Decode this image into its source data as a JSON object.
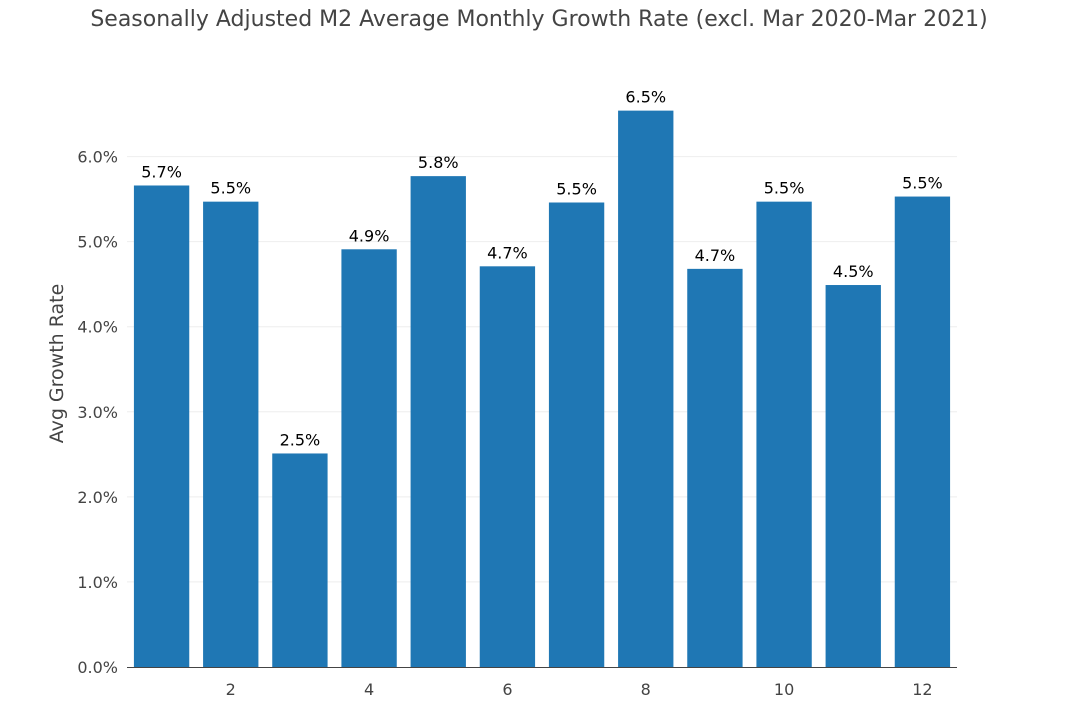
{
  "chart_data": {
    "type": "bar",
    "title": "Seasonally Adjusted M2 Average Monthly Growth Rate (excl. Mar 2020-Mar 2021)",
    "xlabel": "",
    "ylabel": "Avg Growth Rate",
    "categories": [
      1,
      2,
      3,
      4,
      5,
      6,
      7,
      8,
      9,
      10,
      11,
      12
    ],
    "values": [
      5.66,
      5.47,
      2.51,
      4.91,
      5.77,
      4.71,
      5.46,
      6.54,
      4.68,
      5.47,
      4.49,
      5.53
    ],
    "data_labels": [
      "5.7%",
      "5.5%",
      "2.5%",
      "4.9%",
      "5.8%",
      "4.7%",
      "5.5%",
      "6.5%",
      "4.7%",
      "5.5%",
      "4.5%",
      "5.5%"
    ],
    "ylim": [
      0,
      6.9
    ],
    "y_ticks": [
      0,
      1,
      2,
      3,
      4,
      5,
      6
    ],
    "y_tick_labels": [
      "0.0%",
      "1.0%",
      "2.0%",
      "3.0%",
      "4.0%",
      "5.0%",
      "6.0%"
    ],
    "x_ticks": [
      2,
      4,
      6,
      8,
      10,
      12
    ],
    "x_tick_labels": [
      "2",
      "4",
      "6",
      "8",
      "10",
      "12"
    ],
    "xlim": [
      0.5,
      12.5
    ],
    "grid": true,
    "bar_color": "#1f77b4"
  }
}
